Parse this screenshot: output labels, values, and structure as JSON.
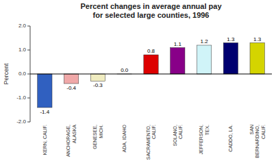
{
  "chart_data": {
    "type": "bar",
    "title": "Percent changes in average annual pay\nfor selected large counties, 1996",
    "ylabel": "Percent",
    "categories": [
      "KERN, CALIF.",
      "ANCHORAGE,\nALASKA",
      "GENESEE,\nMICH.",
      "ADA, IDAHO",
      "SACRAMENTO,\nCALIF.",
      "SOLANO,\nCALIF.",
      "JEFFERSON,\nTEX.",
      "CADDO, LA.",
      "SAN\nBERNARDINO,\nCALIF."
    ],
    "values": [
      -1.4,
      -0.4,
      -0.3,
      0.0,
      0.8,
      1.1,
      1.2,
      1.3,
      1.3
    ],
    "value_labels": [
      "-1.4",
      "-0.4",
      "-0.3",
      "0.0",
      "0.8",
      "1.1",
      "1.2",
      "1.3",
      "1.3"
    ],
    "colors": [
      "#3060c0",
      "#f0a8a8",
      "#f0ecc0",
      "#d0d0d0",
      "#dd0000",
      "#880088",
      "#d0f4f8",
      "#000070",
      "#d4d400"
    ],
    "ylim": [
      -2.0,
      2.0
    ],
    "yticks": [
      {
        "value": -2.0,
        "label": "-2.0"
      },
      {
        "value": -1.0,
        "label": "-1.0"
      },
      {
        "value": 0.0,
        "label": "0.0"
      },
      {
        "value": 1.0,
        "label": "1.0"
      },
      {
        "value": 2.0,
        "label": "2.0"
      }
    ],
    "grid": false,
    "data_labels": true
  }
}
